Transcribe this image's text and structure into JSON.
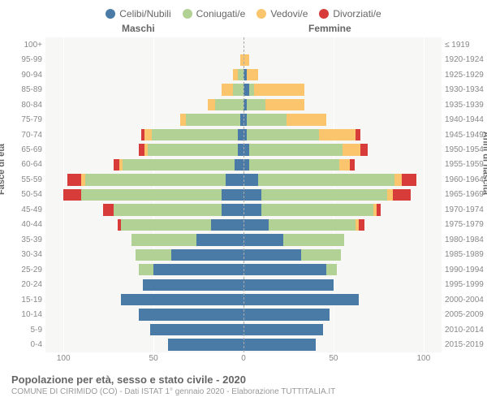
{
  "legend": [
    {
      "label": "Celibi/Nubili",
      "color": "#4a7ba6"
    },
    {
      "label": "Coniugati/e",
      "color": "#b2d194"
    },
    {
      "label": "Vedovi/e",
      "color": "#fac56d"
    },
    {
      "label": "Divorziati/e",
      "color": "#d73c3a"
    }
  ],
  "header_male": "Maschi",
  "header_female": "Femmine",
  "ylabel_left": "Fasce di età",
  "ylabel_right": "Anni di nascita",
  "xmax": 110,
  "xticks": [
    100,
    50,
    0,
    50,
    100
  ],
  "grid_color": "#ffffff",
  "plot_bg": "#f7f7f5",
  "centerline_color": "#aaaaaa",
  "tick_color": "#888888",
  "age_bands": [
    "100+",
    "95-99",
    "90-94",
    "85-89",
    "80-84",
    "75-79",
    "70-74",
    "65-69",
    "60-64",
    "55-59",
    "50-54",
    "45-49",
    "40-44",
    "35-39",
    "30-34",
    "25-29",
    "20-24",
    "15-19",
    "10-14",
    "5-9",
    "0-4"
  ],
  "birth_bands": [
    "≤ 1919",
    "1920-1924",
    "1925-1929",
    "1930-1934",
    "1935-1939",
    "1940-1944",
    "1945-1949",
    "1950-1954",
    "1955-1959",
    "1960-1964",
    "1965-1969",
    "1970-1974",
    "1975-1979",
    "1980-1984",
    "1985-1989",
    "1990-1994",
    "1995-1999",
    "2000-2004",
    "2005-2009",
    "2010-2014",
    "2015-2019"
  ],
  "rows": [
    {
      "m": [
        0,
        0,
        0,
        0
      ],
      "f": [
        0,
        0,
        0,
        0
      ]
    },
    {
      "m": [
        0,
        0,
        2,
        0
      ],
      "f": [
        0,
        0,
        3,
        0
      ]
    },
    {
      "m": [
        0,
        3,
        3,
        0
      ],
      "f": [
        2,
        0,
        6,
        0
      ]
    },
    {
      "m": [
        0,
        6,
        6,
        0
      ],
      "f": [
        3,
        3,
        28,
        0
      ]
    },
    {
      "m": [
        0,
        16,
        4,
        0
      ],
      "f": [
        2,
        10,
        22,
        0
      ]
    },
    {
      "m": [
        2,
        30,
        3,
        0
      ],
      "f": [
        2,
        22,
        22,
        0
      ]
    },
    {
      "m": [
        3,
        48,
        4,
        2
      ],
      "f": [
        2,
        40,
        20,
        3
      ]
    },
    {
      "m": [
        3,
        50,
        2,
        3
      ],
      "f": [
        3,
        52,
        10,
        4
      ]
    },
    {
      "m": [
        5,
        62,
        2,
        3
      ],
      "f": [
        3,
        50,
        6,
        3
      ]
    },
    {
      "m": [
        10,
        78,
        2,
        8
      ],
      "f": [
        8,
        76,
        4,
        8
      ]
    },
    {
      "m": [
        12,
        78,
        0,
        10
      ],
      "f": [
        10,
        70,
        3,
        10
      ]
    },
    {
      "m": [
        12,
        60,
        0,
        6
      ],
      "f": [
        10,
        62,
        2,
        2
      ]
    },
    {
      "m": [
        18,
        50,
        0,
        2
      ],
      "f": [
        14,
        48,
        2,
        3
      ]
    },
    {
      "m": [
        26,
        36,
        0,
        0
      ],
      "f": [
        22,
        34,
        0,
        0
      ]
    },
    {
      "m": [
        40,
        20,
        0,
        0
      ],
      "f": [
        32,
        22,
        0,
        0
      ]
    },
    {
      "m": [
        50,
        8,
        0,
        0
      ],
      "f": [
        46,
        6,
        0,
        0
      ]
    },
    {
      "m": [
        56,
        0,
        0,
        0
      ],
      "f": [
        50,
        0,
        0,
        0
      ]
    },
    {
      "m": [
        68,
        0,
        0,
        0
      ],
      "f": [
        64,
        0,
        0,
        0
      ]
    },
    {
      "m": [
        58,
        0,
        0,
        0
      ],
      "f": [
        48,
        0,
        0,
        0
      ]
    },
    {
      "m": [
        52,
        0,
        0,
        0
      ],
      "f": [
        44,
        0,
        0,
        0
      ]
    },
    {
      "m": [
        42,
        0,
        0,
        0
      ],
      "f": [
        40,
        0,
        0,
        0
      ]
    }
  ],
  "title": "Popolazione per età, sesso e stato civile - 2020",
  "subtitle": "COMUNE DI CIRIMIDO (CO) - Dati ISTAT 1° gennaio 2020 - Elaborazione TUTTITALIA.IT"
}
